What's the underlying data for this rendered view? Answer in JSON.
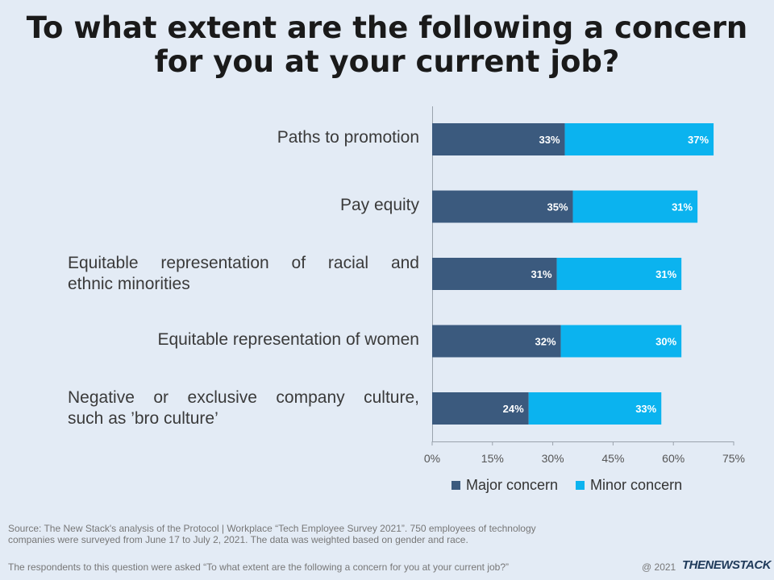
{
  "title_lines": [
    "To what extent are the following a concern",
    "for you at your current job?"
  ],
  "colors": {
    "major": "#3b5a7e",
    "minor": "#0bb3ef",
    "axis": "#9aa3ad",
    "tick_text": "#555555",
    "label_text": "#ffffff"
  },
  "chart_data": {
    "type": "bar",
    "orientation": "horizontal",
    "stacked": true,
    "categories": [
      [
        "Paths to promotion"
      ],
      [
        "Pay equity"
      ],
      [
        "Equitable representation of racial and",
        "ethnic minorities"
      ],
      [
        "Equitable representation of women"
      ],
      [
        "Negative or exclusive company culture,",
        "such as ’bro culture’"
      ]
    ],
    "series": [
      {
        "name": "Major concern",
        "values": [
          33,
          35,
          31,
          32,
          24
        ],
        "labels": [
          "33%",
          "35%",
          "31%",
          "32%",
          "24%"
        ]
      },
      {
        "name": "Minor concern",
        "values": [
          37,
          31,
          31,
          30,
          33
        ],
        "labels": [
          "37%",
          "31%",
          "31%",
          "30%",
          "33%"
        ]
      }
    ],
    "xlim": [
      0,
      75
    ],
    "xticks": [
      "0%",
      "15%",
      "30%",
      "45%",
      "60%",
      "75%"
    ],
    "legend_position": "bottom-center"
  },
  "footer": {
    "source_lines": [
      "Source: The New Stack's analysis of the Protocol | Workplace “Tech Employee Survey 2021”. 750 employees of technology",
      "companies were surveyed from June 17 to July 2, 2021. The data was weighted based on gender and race."
    ],
    "question": "The respondents to this question were asked “To what extent are the following a concern for you at your current job?”",
    "copyright": "@ 2021",
    "brand": "THENEWSTACK"
  }
}
